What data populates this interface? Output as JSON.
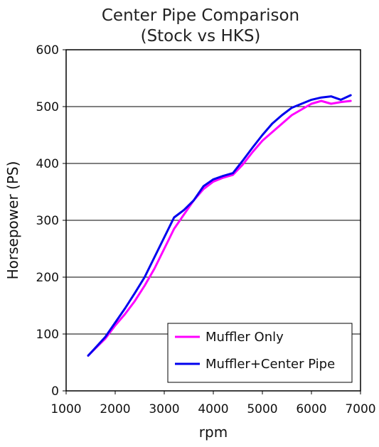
{
  "chart_data": {
    "type": "line",
    "title": "Center Pipe Comparison",
    "subtitle": "(Stock vs HKS)",
    "xlabel": "rpm",
    "ylabel": "Horsepower (PS)",
    "xlim": [
      1000,
      7000
    ],
    "ylim": [
      0,
      600
    ],
    "xticks": [
      "1000",
      "2000",
      "3000",
      "4000",
      "5000",
      "6000",
      "7000"
    ],
    "yticks": [
      "0",
      "100",
      "200",
      "300",
      "400",
      "500",
      "600"
    ],
    "grid": "horizontal",
    "legend_position": "bottom-right",
    "series": [
      {
        "name": "Muffler Only",
        "color": "#ff00ff",
        "x": [
          1450,
          1600,
          1800,
          2000,
          2200,
          2400,
          2600,
          2800,
          3000,
          3200,
          3400,
          3600,
          3800,
          4000,
          4200,
          4400,
          4600,
          4800,
          5000,
          5200,
          5400,
          5600,
          5800,
          6000,
          6200,
          6400,
          6600,
          6800
        ],
        "values": [
          62,
          75,
          92,
          115,
          135,
          158,
          185,
          215,
          250,
          285,
          310,
          335,
          355,
          368,
          375,
          380,
          398,
          420,
          440,
          455,
          470,
          485,
          495,
          505,
          510,
          505,
          508,
          510
        ]
      },
      {
        "name": "Muffler+Center Pipe",
        "color": "#0000ee",
        "x": [
          1450,
          1600,
          1800,
          2000,
          2200,
          2400,
          2600,
          2800,
          3000,
          3200,
          3400,
          3600,
          3800,
          4000,
          4200,
          4400,
          4600,
          4800,
          5000,
          5200,
          5400,
          5600,
          5800,
          6000,
          6200,
          6400,
          6600,
          6800
        ],
        "values": [
          62,
          76,
          95,
          120,
          145,
          172,
          200,
          235,
          270,
          305,
          318,
          335,
          360,
          372,
          378,
          383,
          405,
          428,
          450,
          470,
          485,
          498,
          505,
          512,
          516,
          518,
          512,
          520
        ]
      }
    ]
  }
}
